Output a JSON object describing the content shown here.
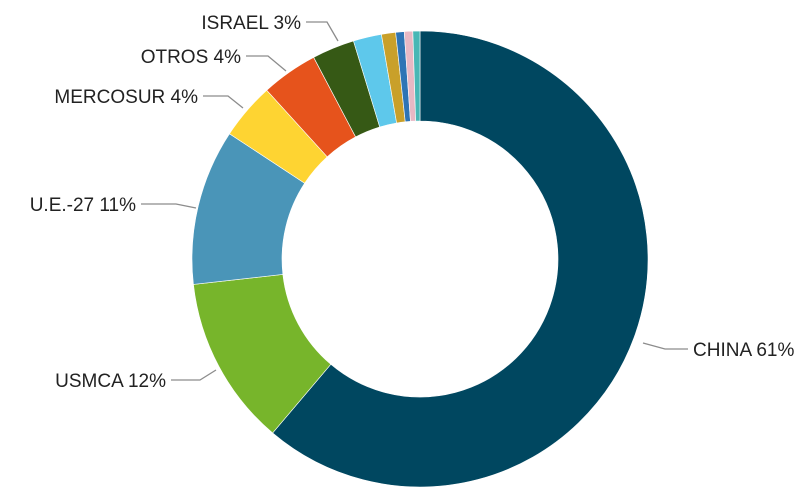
{
  "chart_data": {
    "type": "donut",
    "title": "",
    "slices": [
      {
        "label": "CHINA",
        "value": 61,
        "display": "CHINA 61%",
        "color": "#004760"
      },
      {
        "label": "USMCA",
        "value": 12,
        "display": "USMCA 12%",
        "color": "#77b52b"
      },
      {
        "label": "U.E.-27",
        "value": 11,
        "display": "U.E.-27 11%",
        "color": "#4a95b8"
      },
      {
        "label": "MERCOSUR",
        "value": 4,
        "display": "MERCOSUR 4%",
        "color": "#fed432"
      },
      {
        "label": "OTROS",
        "value": 4,
        "display": "OTROS 4%",
        "color": "#e6531c"
      },
      {
        "label": "ISRAEL",
        "value": 3,
        "display": "ISRAEL 3%",
        "color": "#365915"
      },
      {
        "label": "",
        "value": 2,
        "display": "",
        "color": "#5ec8eb"
      },
      {
        "label": "",
        "value": 1,
        "display": "",
        "color": "#c9a02a"
      },
      {
        "label": "",
        "value": 0.6,
        "display": "",
        "color": "#2e74b5"
      },
      {
        "label": "",
        "value": 0.6,
        "display": "",
        "color": "#e8b8c4"
      },
      {
        "label": "",
        "value": 0.5,
        "display": "",
        "color": "#48b7b5"
      }
    ],
    "legend": "none"
  }
}
